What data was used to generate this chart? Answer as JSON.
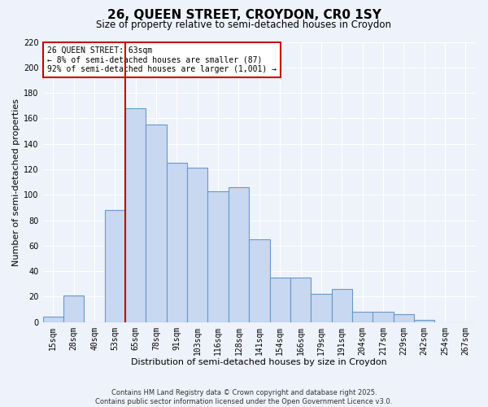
{
  "title": "26, QUEEN STREET, CROYDON, CR0 1SY",
  "subtitle": "Size of property relative to semi-detached houses in Croydon",
  "xlabel": "Distribution of semi-detached houses by size in Croydon",
  "ylabel": "Number of semi-detached properties",
  "categories": [
    "15sqm",
    "28sqm",
    "40sqm",
    "53sqm",
    "65sqm",
    "78sqm",
    "91sqm",
    "103sqm",
    "116sqm",
    "128sqm",
    "141sqm",
    "154sqm",
    "166sqm",
    "179sqm",
    "191sqm",
    "204sqm",
    "217sqm",
    "229sqm",
    "242sqm",
    "254sqm",
    "267sqm"
  ],
  "values": [
    4,
    21,
    0,
    88,
    168,
    155,
    125,
    121,
    103,
    106,
    65,
    35,
    35,
    22,
    26,
    8,
    8,
    6,
    2,
    0,
    0
  ],
  "bar_color": "#c8d8f0",
  "bar_edge_color": "#6699cc",
  "highlight_bar_index": 4,
  "highlight_color": "#cc0000",
  "ylim": [
    0,
    220
  ],
  "yticks": [
    0,
    20,
    40,
    60,
    80,
    100,
    120,
    140,
    160,
    180,
    200,
    220
  ],
  "annotation_title": "26 QUEEN STREET: 63sqm",
  "annotation_line1": "← 8% of semi-detached houses are smaller (87)",
  "annotation_line2": "92% of semi-detached houses are larger (1,001) →",
  "footer_line1": "Contains HM Land Registry data © Crown copyright and database right 2025.",
  "footer_line2": "Contains public sector information licensed under the Open Government Licence v3.0.",
  "bg_color": "#eef2fb",
  "grid_color": "#ffffff",
  "title_fontsize": 11,
  "subtitle_fontsize": 8.5,
  "axis_label_fontsize": 8,
  "tick_fontsize": 7,
  "annotation_box_color": "#ffffff",
  "annotation_box_edge": "#cc0000"
}
